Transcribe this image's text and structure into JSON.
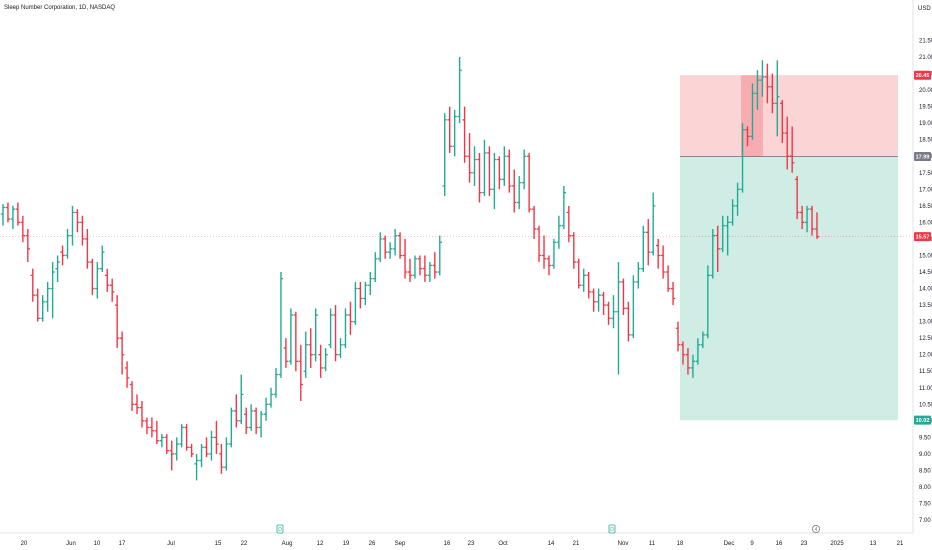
{
  "chart_data": {
    "type": "ohlc",
    "title": "Sleep Number Corporation, 1D, NASDAQ",
    "currency": "USD",
    "y_axis": {
      "ticks": [
        7.0,
        7.5,
        8.0,
        8.5,
        9.0,
        9.5,
        10.0,
        10.5,
        11.0,
        11.5,
        12.0,
        12.5,
        13.0,
        13.5,
        14.0,
        14.5,
        15.0,
        15.5,
        16.0,
        16.5,
        17.0,
        17.5,
        18.0,
        18.5,
        19.0,
        19.5,
        20.0,
        20.5,
        21.0,
        21.5
      ],
      "tick_labels": [
        "7.00",
        "7.50",
        "8.00",
        "8.50",
        "9.00",
        "9.50",
        "10.00",
        "10.50",
        "11.00",
        "11.50",
        "12.00",
        "12.50",
        "13.00",
        "13.50",
        "14.00",
        "14.50",
        "15.00",
        "15.50",
        "16.00",
        "16.50",
        "17.00",
        "17.50",
        "18.00",
        "18.50",
        "19.00",
        "19.50",
        "20.00",
        "20.50",
        "21.00",
        "21.50"
      ],
      "range": [
        6.7,
        22.3
      ]
    },
    "x_axis": {
      "labels": [
        "20",
        "Jun",
        "10",
        "17",
        "Jul",
        "15",
        "22",
        "Aug",
        "12",
        "19",
        "26",
        "Sep",
        "16",
        "23",
        "Oct",
        "14",
        "21",
        "Nov",
        "11",
        "18",
        "Dec",
        "9",
        "16",
        "23",
        "2025",
        "13",
        "21"
      ]
    },
    "price_badges": [
      {
        "label": "20.45",
        "value": 20.45,
        "color": "#f23645"
      },
      {
        "label": "17.99",
        "value": 17.99,
        "color": "#787b86"
      },
      {
        "label": "15.57",
        "value": 15.57,
        "color": "#f23645"
      },
      {
        "label": "10.02",
        "value": 10.02,
        "color": "#22ab94"
      }
    ],
    "position_tool": {
      "entry": 17.99,
      "stop": 20.45,
      "target": 10.02,
      "stop_color": "#f7a9ae",
      "target_color": "#a8dccf"
    },
    "event_markers": [
      "D",
      "D",
      "4"
    ],
    "colors": {
      "up": "#22ab94",
      "down": "#f23645"
    },
    "bars": [
      [
        16.25,
        16.55,
        15.9,
        16.45
      ],
      [
        16.45,
        16.6,
        16.0,
        16.1
      ],
      [
        16.1,
        16.5,
        15.8,
        16.4
      ],
      [
        16.4,
        16.6,
        15.9,
        16.0
      ],
      [
        16.0,
        16.2,
        15.4,
        15.6
      ],
      [
        15.6,
        15.8,
        14.8,
        15.2
      ],
      [
        14.4,
        14.6,
        13.6,
        13.8
      ],
      [
        13.8,
        14.0,
        13.0,
        13.1
      ],
      [
        13.1,
        13.8,
        13.0,
        13.6
      ],
      [
        13.6,
        14.2,
        13.3,
        14.0
      ],
      [
        14.0,
        14.8,
        13.1,
        14.5
      ],
      [
        14.6,
        15.0,
        14.2,
        14.8
      ],
      [
        15.1,
        15.3,
        14.7,
        15.0
      ],
      [
        15.0,
        15.8,
        14.9,
        15.6
      ],
      [
        15.6,
        16.5,
        15.3,
        16.3
      ],
      [
        16.3,
        16.4,
        15.7,
        16.0
      ],
      [
        16.0,
        16.2,
        15.3,
        15.5
      ],
      [
        15.5,
        15.8,
        14.6,
        14.8
      ],
      [
        14.8,
        14.9,
        13.8,
        14.0
      ],
      [
        14.0,
        14.8,
        13.7,
        14.6
      ],
      [
        14.6,
        15.3,
        14.5,
        15.1
      ],
      [
        14.4,
        14.6,
        13.9,
        14.1
      ],
      [
        14.1,
        14.3,
        13.6,
        13.9
      ],
      [
        13.5,
        13.8,
        12.2,
        12.5
      ],
      [
        12.5,
        12.7,
        11.4,
        12.0
      ],
      [
        11.6,
        11.8,
        11.0,
        11.3
      ],
      [
        11.1,
        11.2,
        10.3,
        10.5
      ],
      [
        10.5,
        10.8,
        10.2,
        10.4
      ],
      [
        10.4,
        10.6,
        9.8,
        10.0
      ],
      [
        10.0,
        10.1,
        9.6,
        9.8
      ],
      [
        9.8,
        10.1,
        9.5,
        9.7
      ],
      [
        9.7,
        10.0,
        9.3,
        9.4
      ],
      [
        9.4,
        9.6,
        9.2,
        9.5
      ],
      [
        9.5,
        9.6,
        9.0,
        9.1
      ],
      [
        9.1,
        9.4,
        8.5,
        9.0
      ],
      [
        9.0,
        9.5,
        8.8,
        9.3
      ],
      [
        9.3,
        9.9,
        9.2,
        9.8
      ],
      [
        9.8,
        9.9,
        9.1,
        9.2
      ],
      [
        9.2,
        9.3,
        8.9,
        9.0
      ],
      [
        8.7,
        9.0,
        8.2,
        8.8
      ],
      [
        8.8,
        9.3,
        8.6,
        9.2
      ],
      [
        9.2,
        9.5,
        8.9,
        9.0
      ],
      [
        9.0,
        9.7,
        8.8,
        9.5
      ],
      [
        9.5,
        10.0,
        9.0,
        9.3
      ],
      [
        9.0,
        9.3,
        8.4,
        8.6
      ],
      [
        8.6,
        9.5,
        8.5,
        9.3
      ],
      [
        9.3,
        10.4,
        9.2,
        10.3
      ],
      [
        10.3,
        10.8,
        9.8,
        10.0
      ],
      [
        10.0,
        11.4,
        9.9,
        10.8
      ],
      [
        10.2,
        10.4,
        9.6,
        9.8
      ],
      [
        9.8,
        10.5,
        9.7,
        10.3
      ],
      [
        10.3,
        10.4,
        9.6,
        9.8
      ],
      [
        9.8,
        10.3,
        9.5,
        10.2
      ],
      [
        10.2,
        10.7,
        10.0,
        10.5
      ],
      [
        10.5,
        11.0,
        10.4,
        10.8
      ],
      [
        10.8,
        11.6,
        10.7,
        11.4
      ],
      [
        11.4,
        14.5,
        11.3,
        14.3
      ],
      [
        12.2,
        12.5,
        11.6,
        11.8
      ],
      [
        11.8,
        13.4,
        11.7,
        13.2
      ],
      [
        13.2,
        13.3,
        11.5,
        11.8
      ],
      [
        11.8,
        12.3,
        10.6,
        11.1
      ],
      [
        11.5,
        12.7,
        11.3,
        12.3
      ],
      [
        12.3,
        12.8,
        11.6,
        12.0
      ],
      [
        12.0,
        13.4,
        11.8,
        13.2
      ],
      [
        12.0,
        12.3,
        11.3,
        11.6
      ],
      [
        11.6,
        12.2,
        11.5,
        12.0
      ],
      [
        12.3,
        13.4,
        12.2,
        13.2
      ],
      [
        13.2,
        13.5,
        11.8,
        12.0
      ],
      [
        12.0,
        12.5,
        11.9,
        12.3
      ],
      [
        12.3,
        13.4,
        12.2,
        13.2
      ],
      [
        13.2,
        13.6,
        12.6,
        13.0
      ],
      [
        13.0,
        14.2,
        12.9,
        14.0
      ],
      [
        14.0,
        14.2,
        13.4,
        13.7
      ],
      [
        13.7,
        14.2,
        13.5,
        14.1
      ],
      [
        14.1,
        14.5,
        13.8,
        14.3
      ],
      [
        14.3,
        15.1,
        14.2,
        14.9
      ],
      [
        14.9,
        15.7,
        14.8,
        15.5
      ],
      [
        15.5,
        15.6,
        14.9,
        15.1
      ],
      [
        15.1,
        15.4,
        14.9,
        15.2
      ],
      [
        15.2,
        15.8,
        15.0,
        15.6
      ],
      [
        15.6,
        15.7,
        14.9,
        15.0
      ],
      [
        15.0,
        15.5,
        14.3,
        14.5
      ],
      [
        14.5,
        14.9,
        14.2,
        14.4
      ],
      [
        14.4,
        15.0,
        14.3,
        14.9
      ],
      [
        14.9,
        15.0,
        14.4,
        14.6
      ],
      [
        14.6,
        15.0,
        14.2,
        14.4
      ],
      [
        14.4,
        14.8,
        14.2,
        14.7
      ],
      [
        14.7,
        15.1,
        14.3,
        14.5
      ],
      [
        14.5,
        15.6,
        14.4,
        15.4
      ],
      [
        17.1,
        19.3,
        16.8,
        19.1
      ],
      [
        19.1,
        19.5,
        18.1,
        18.3
      ],
      [
        18.3,
        19.4,
        18.0,
        19.2
      ],
      [
        19.2,
        21.0,
        19.0,
        20.6
      ],
      [
        19.1,
        19.5,
        17.8,
        18.0
      ],
      [
        18.0,
        18.7,
        17.2,
        17.5
      ],
      [
        17.5,
        18.3,
        17.1,
        17.9
      ],
      [
        17.9,
        18.1,
        16.6,
        16.9
      ],
      [
        16.9,
        18.5,
        16.8,
        18.1
      ],
      [
        18.1,
        18.3,
        16.8,
        17.0
      ],
      [
        17.0,
        18.1,
        16.4,
        17.9
      ],
      [
        17.9,
        18.0,
        17.0,
        17.3
      ],
      [
        17.3,
        18.3,
        17.1,
        18.0
      ],
      [
        18.0,
        18.2,
        16.9,
        17.1
      ],
      [
        17.1,
        17.6,
        16.3,
        16.6
      ],
      [
        16.6,
        17.4,
        16.4,
        17.2
      ],
      [
        17.2,
        18.2,
        17.0,
        18.0
      ],
      [
        18.0,
        18.1,
        16.3,
        16.4
      ],
      [
        16.4,
        16.5,
        15.5,
        15.8
      ],
      [
        15.8,
        15.9,
        14.8,
        15.0
      ],
      [
        15.0,
        15.6,
        14.6,
        14.9
      ],
      [
        14.9,
        15.0,
        14.4,
        14.7
      ],
      [
        14.7,
        15.5,
        14.6,
        15.4
      ],
      [
        15.4,
        16.2,
        15.2,
        15.9
      ],
      [
        15.9,
        17.1,
        15.8,
        16.9
      ],
      [
        16.3,
        16.5,
        15.4,
        15.6
      ],
      [
        15.6,
        15.7,
        14.6,
        14.8
      ],
      [
        14.8,
        14.9,
        14.0,
        14.1
      ],
      [
        14.1,
        14.6,
        13.9,
        14.4
      ],
      [
        14.4,
        14.5,
        13.7,
        13.9
      ],
      [
        13.9,
        14.0,
        13.3,
        13.6
      ],
      [
        13.6,
        14.0,
        13.3,
        13.8
      ],
      [
        13.8,
        13.9,
        13.2,
        13.5
      ],
      [
        13.5,
        13.6,
        12.9,
        13.1
      ],
      [
        13.1,
        13.8,
        12.8,
        13.3
      ],
      [
        13.3,
        14.8,
        11.4,
        14.2
      ],
      [
        14.2,
        14.3,
        13.2,
        13.4
      ],
      [
        13.4,
        13.6,
        12.4,
        12.6
      ],
      [
        12.6,
        14.4,
        12.5,
        14.2
      ],
      [
        14.2,
        14.8,
        14.0,
        14.6
      ],
      [
        14.6,
        15.9,
        14.5,
        15.7
      ],
      [
        15.7,
        16.1,
        14.7,
        15.1
      ],
      [
        15.1,
        16.9,
        15.0,
        16.5
      ],
      [
        15.3,
        15.5,
        14.6,
        15.0
      ],
      [
        15.0,
        15.3,
        14.3,
        14.5
      ],
      [
        14.5,
        14.7,
        13.9,
        14.0
      ],
      [
        14.0,
        14.2,
        13.5,
        13.7
      ],
      [
        12.8,
        13.0,
        12.1,
        12.3
      ],
      [
        12.3,
        12.4,
        11.7,
        12.0
      ],
      [
        12.0,
        12.2,
        11.4,
        11.6
      ],
      [
        11.6,
        12.0,
        11.3,
        11.8
      ],
      [
        11.8,
        12.5,
        11.7,
        12.3
      ],
      [
        12.3,
        12.7,
        12.2,
        12.6
      ],
      [
        12.6,
        14.7,
        12.5,
        14.4
      ],
      [
        14.4,
        15.8,
        14.3,
        15.6
      ],
      [
        15.6,
        15.9,
        14.5,
        15.2
      ],
      [
        15.2,
        16.2,
        15.1,
        15.9
      ],
      [
        15.9,
        16.2,
        15.0,
        16.0
      ],
      [
        16.0,
        16.7,
        15.9,
        16.5
      ],
      [
        16.5,
        17.2,
        16.2,
        17.0
      ],
      [
        17.0,
        19.0,
        16.9,
        18.8
      ],
      [
        18.8,
        18.9,
        18.3,
        18.6
      ],
      [
        18.6,
        20.2,
        18.5,
        19.9
      ],
      [
        19.9,
        20.6,
        19.4,
        20.3
      ],
      [
        20.3,
        20.9,
        19.8,
        20.4
      ],
      [
        20.4,
        20.8,
        19.6,
        20.1
      ],
      [
        20.1,
        20.5,
        19.3,
        19.6
      ],
      [
        19.6,
        20.9,
        18.6,
        19.8
      ],
      [
        19.6,
        19.7,
        18.4,
        18.7
      ],
      [
        18.7,
        19.2,
        17.6,
        18.0
      ],
      [
        18.0,
        18.9,
        17.5,
        17.8
      ],
      [
        17.3,
        17.4,
        16.1,
        16.3
      ],
      [
        16.3,
        16.5,
        15.8,
        16.0
      ],
      [
        16.0,
        16.5,
        15.7,
        16.4
      ],
      [
        16.4,
        16.5,
        15.6,
        15.8
      ],
      [
        15.8,
        16.3,
        15.5,
        15.57
      ]
    ]
  }
}
